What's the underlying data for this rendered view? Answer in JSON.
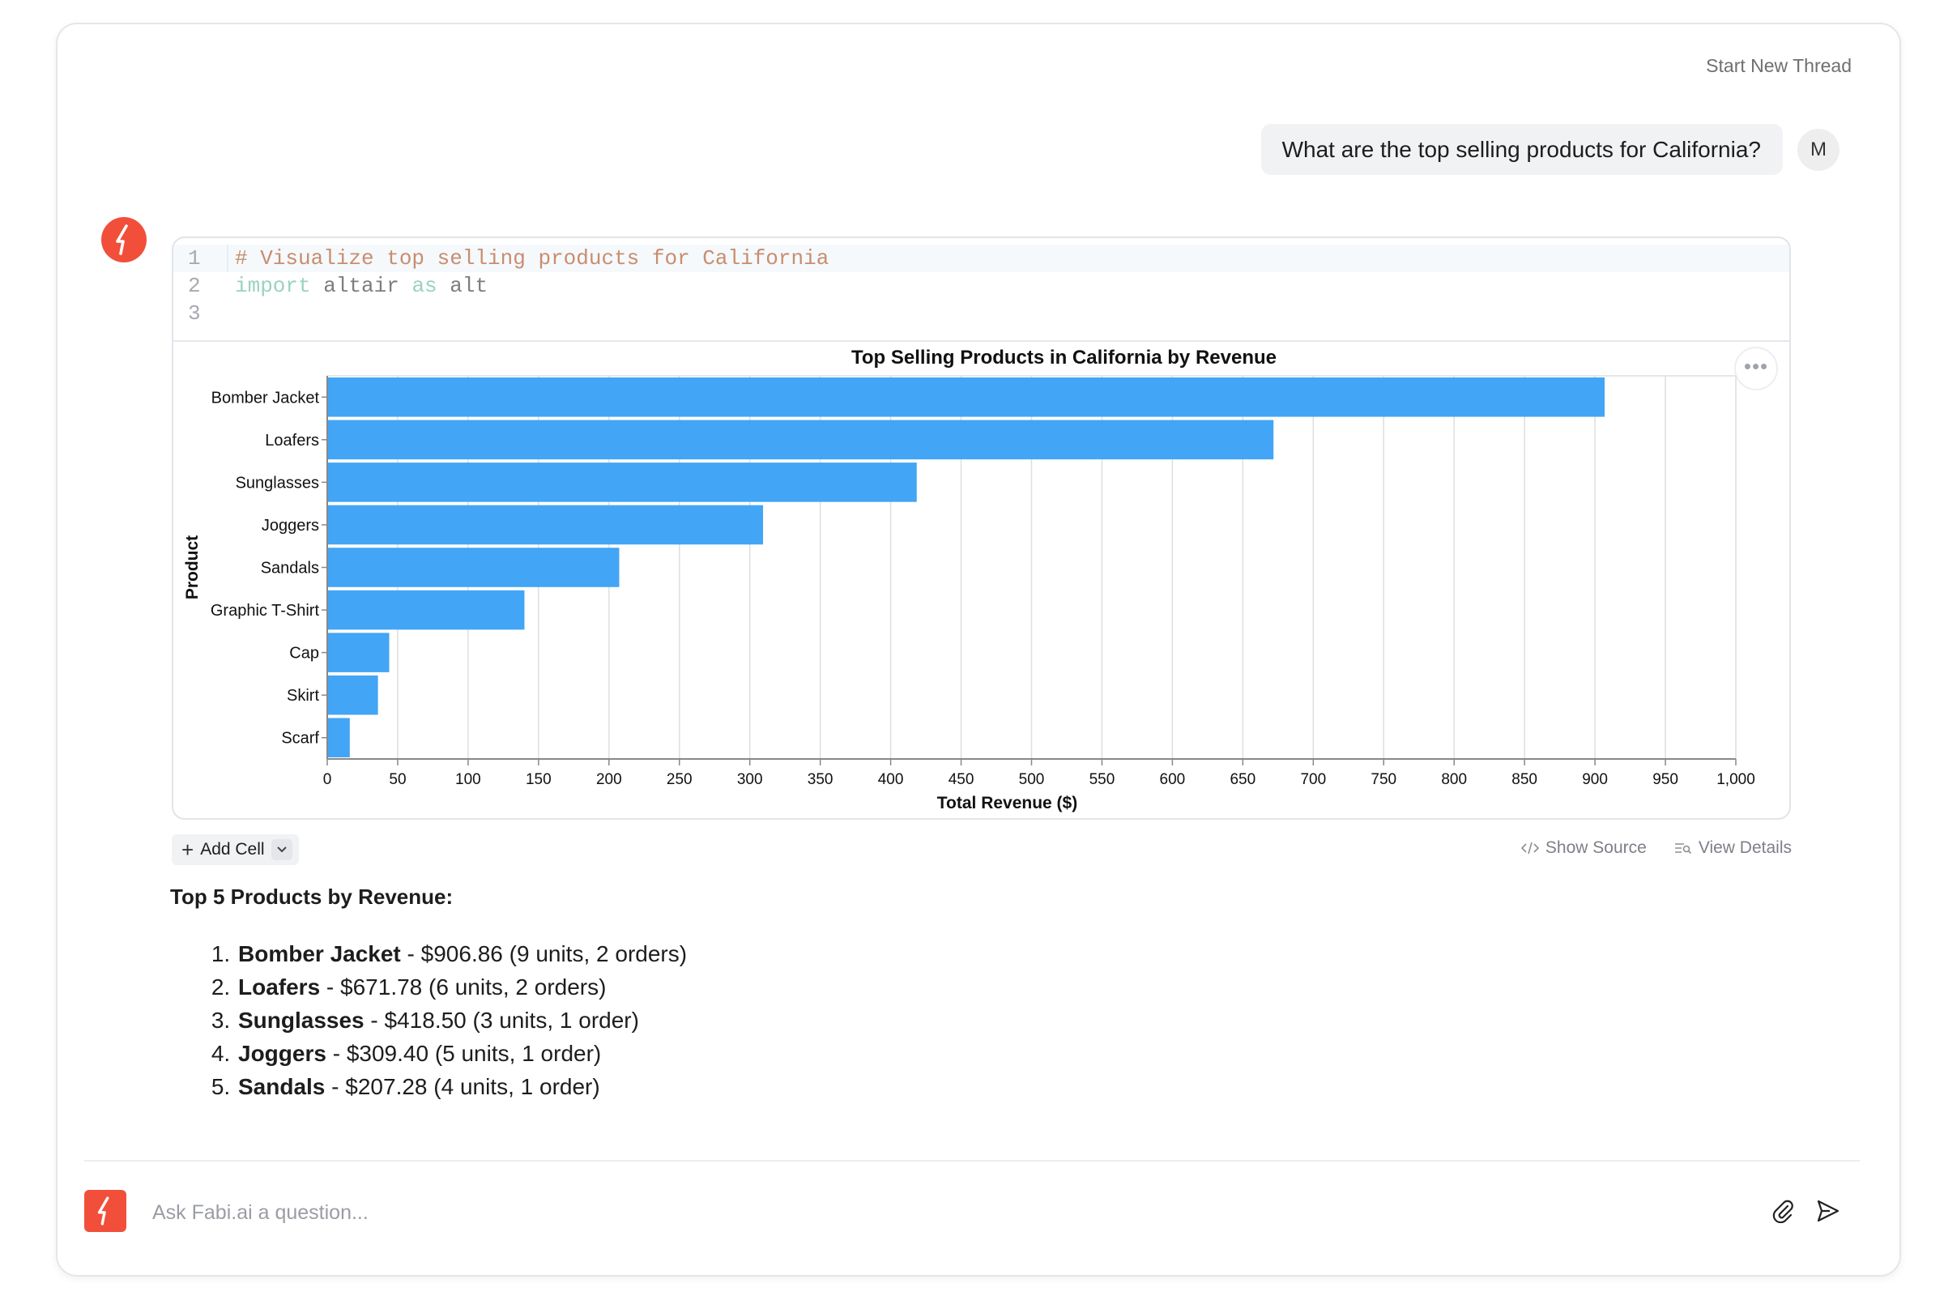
{
  "header": {
    "start_new_thread": "Start New Thread"
  },
  "user_message": {
    "text": "What are the top selling products for California?",
    "avatar_initial": "M"
  },
  "code_cell": {
    "lines": [
      {
        "number": "1",
        "parts": [
          {
            "cls": "tok-comment",
            "text": "# Visualize top selling products for California"
          }
        ]
      },
      {
        "number": "2",
        "parts": [
          {
            "cls": "tok-kw",
            "text": "import"
          },
          {
            "cls": "tok-plain",
            "text": " altair "
          },
          {
            "cls": "tok-kw",
            "text": "as"
          },
          {
            "cls": "tok-plain",
            "text": " alt"
          }
        ]
      },
      {
        "number": "3",
        "parts": []
      }
    ],
    "more_label": "•••"
  },
  "chart_data": {
    "type": "bar",
    "orientation": "horizontal",
    "title": "Top Selling Products in California by Revenue",
    "xlabel": "Total Revenue ($)",
    "ylabel": "Product",
    "xlim": [
      0,
      1000
    ],
    "x_ticks": [
      0,
      50,
      100,
      150,
      200,
      250,
      300,
      350,
      400,
      450,
      500,
      550,
      600,
      650,
      700,
      750,
      800,
      850,
      900,
      950,
      1000
    ],
    "x_tick_labels": [
      "0",
      "50",
      "100",
      "150",
      "200",
      "250",
      "300",
      "350",
      "400",
      "450",
      "500",
      "550",
      "600",
      "650",
      "700",
      "750",
      "800",
      "850",
      "900",
      "950",
      "1,000"
    ],
    "categories": [
      "Bomber Jacket",
      "Loafers",
      "Sunglasses",
      "Joggers",
      "Sandals",
      "Graphic T-Shirt",
      "Cap",
      "Skirt",
      "Scarf"
    ],
    "values": [
      906.86,
      671.78,
      418.5,
      309.4,
      207.28,
      140,
      44,
      36,
      16
    ],
    "color": "#42a5f5",
    "grid": true
  },
  "cell_toolbar": {
    "add_cell": "Add Cell",
    "show_source": "Show Source",
    "view_details": "View Details"
  },
  "answer": {
    "heading": "Top 5 Products by Revenue:",
    "items": [
      {
        "name": "Bomber Jacket",
        "detail": " - $906.86 (9 units, 2 orders)"
      },
      {
        "name": "Loafers",
        "detail": " - $671.78 (6 units, 2 orders)"
      },
      {
        "name": "Sunglasses",
        "detail": " - $418.50 (3 units, 1 order)"
      },
      {
        "name": "Joggers",
        "detail": " - $309.40 (5 units, 1 order)"
      },
      {
        "name": "Sandals",
        "detail": " - $207.28 (4 units, 1 order)"
      }
    ]
  },
  "composer": {
    "placeholder": "Ask Fabi.ai a question..."
  },
  "colors": {
    "brand": "#f14f3a",
    "bar": "#42a5f5"
  }
}
